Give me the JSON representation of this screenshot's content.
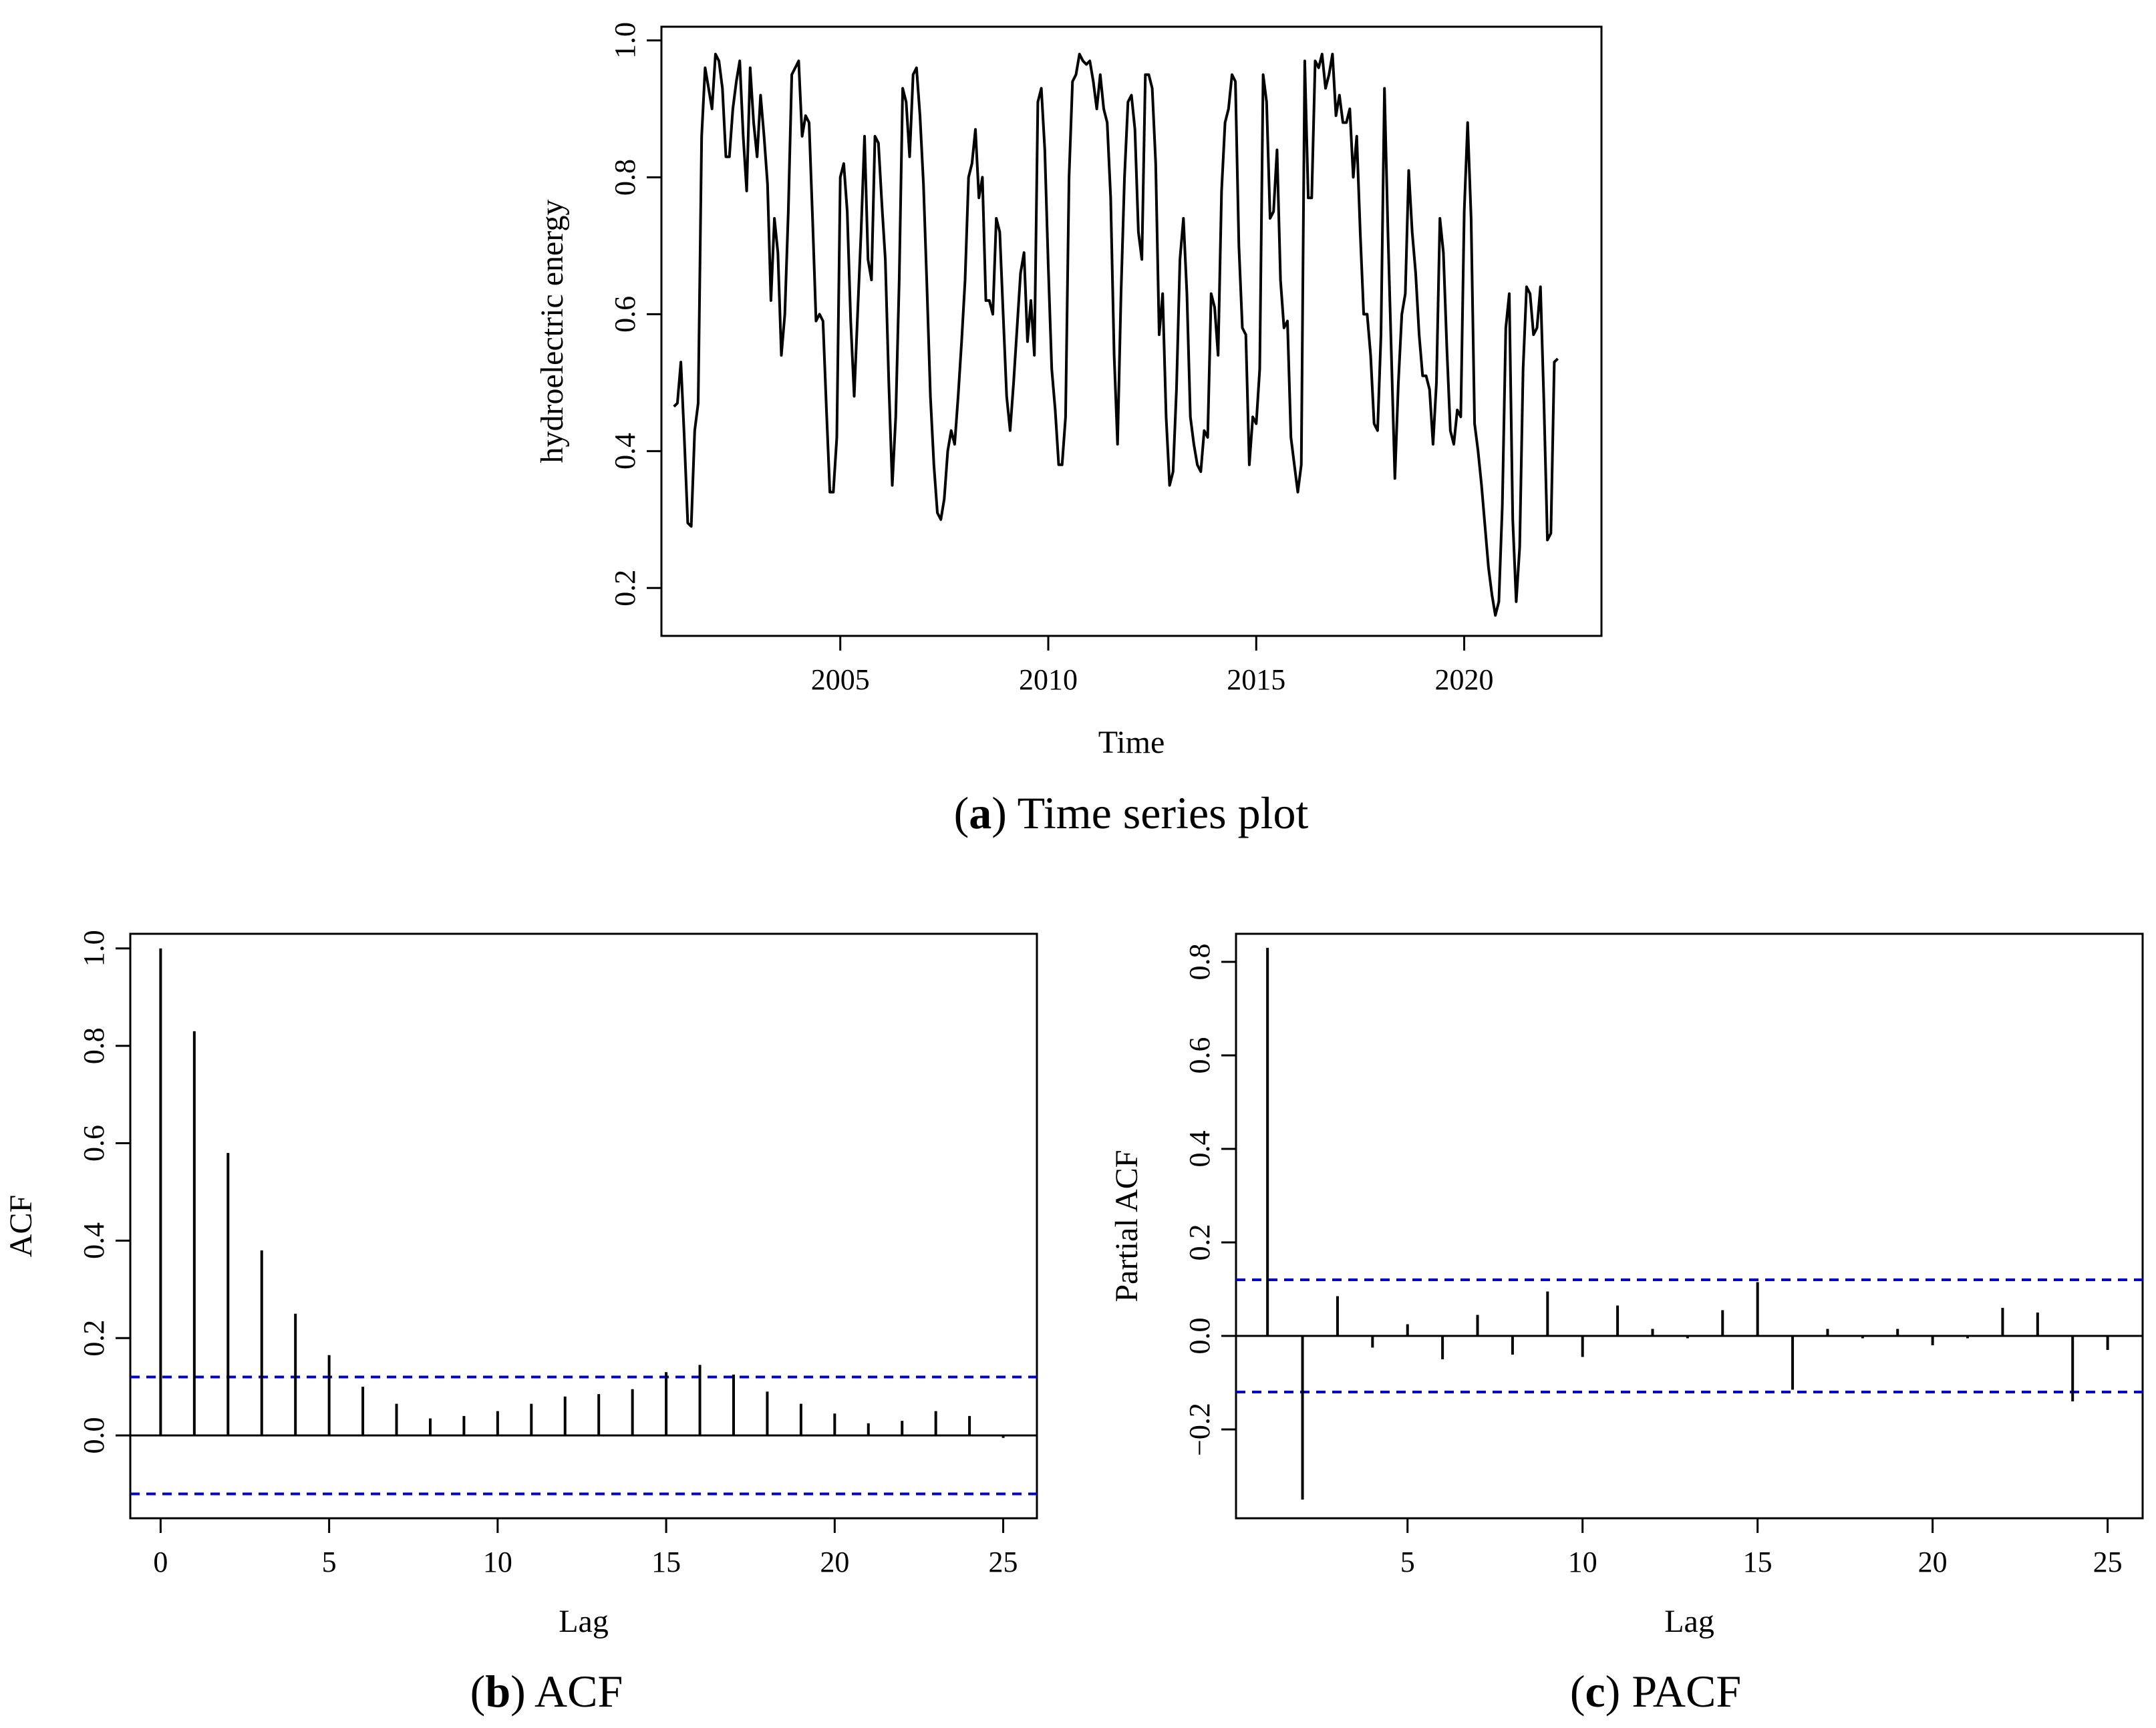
{
  "captions": {
    "a": {
      "letter": "a",
      "text": " Time series plot"
    },
    "b": {
      "letter": "b",
      "text": " ACF"
    },
    "c": {
      "letter": "c",
      "text": " PACF"
    }
  },
  "colors": {
    "series": "#000000",
    "confidence": "#0000dd",
    "axis": "#000000"
  },
  "chart_data": [
    {
      "id": "a",
      "type": "line",
      "title": "",
      "xlabel": "Time",
      "ylabel": "hydroelectric energy",
      "xlim": [
        2000.7,
        2023.3
      ],
      "ylim": [
        0.13,
        1.02
      ],
      "xticks": [
        2005,
        2010,
        2015,
        2020
      ],
      "xtick_labels": [
        "2005",
        "2010",
        "2015",
        "2020"
      ],
      "yticks": [
        0.2,
        0.4,
        0.6,
        0.8,
        1.0
      ],
      "ytick_labels": [
        "0.2",
        "0.4",
        "0.6",
        "0.8",
        "1.0"
      ],
      "x_start": 2001.0,
      "x_step": 0.0833333,
      "values": [
        0.465,
        0.47,
        0.53,
        0.42,
        0.295,
        0.29,
        0.43,
        0.47,
        0.86,
        0.96,
        0.93,
        0.9,
        0.98,
        0.97,
        0.93,
        0.83,
        0.83,
        0.9,
        0.94,
        0.97,
        0.86,
        0.78,
        0.96,
        0.88,
        0.83,
        0.92,
        0.86,
        0.79,
        0.62,
        0.74,
        0.69,
        0.54,
        0.6,
        0.75,
        0.95,
        0.96,
        0.97,
        0.86,
        0.89,
        0.88,
        0.74,
        0.59,
        0.6,
        0.59,
        0.46,
        0.34,
        0.34,
        0.42,
        0.8,
        0.82,
        0.75,
        0.59,
        0.48,
        0.6,
        0.72,
        0.86,
        0.68,
        0.65,
        0.86,
        0.85,
        0.76,
        0.68,
        0.5,
        0.35,
        0.45,
        0.65,
        0.93,
        0.91,
        0.83,
        0.95,
        0.96,
        0.89,
        0.79,
        0.64,
        0.48,
        0.38,
        0.31,
        0.3,
        0.33,
        0.4,
        0.43,
        0.41,
        0.48,
        0.56,
        0.65,
        0.8,
        0.82,
        0.87,
        0.77,
        0.8,
        0.62,
        0.62,
        0.6,
        0.74,
        0.72,
        0.6,
        0.48,
        0.43,
        0.5,
        0.58,
        0.66,
        0.69,
        0.56,
        0.62,
        0.54,
        0.91,
        0.93,
        0.84,
        0.67,
        0.52,
        0.46,
        0.38,
        0.38,
        0.45,
        0.8,
        0.94,
        0.95,
        0.98,
        0.97,
        0.965,
        0.97,
        0.94,
        0.9,
        0.95,
        0.9,
        0.88,
        0.77,
        0.54,
        0.41,
        0.63,
        0.8,
        0.91,
        0.92,
        0.87,
        0.72,
        0.68,
        0.95,
        0.95,
        0.93,
        0.82,
        0.57,
        0.63,
        0.45,
        0.35,
        0.37,
        0.49,
        0.68,
        0.74,
        0.63,
        0.45,
        0.41,
        0.38,
        0.37,
        0.43,
        0.42,
        0.63,
        0.61,
        0.54,
        0.78,
        0.88,
        0.9,
        0.95,
        0.94,
        0.7,
        0.58,
        0.57,
        0.38,
        0.45,
        0.44,
        0.52,
        0.95,
        0.91,
        0.74,
        0.75,
        0.84,
        0.65,
        0.58,
        0.59,
        0.42,
        0.38,
        0.34,
        0.38,
        0.97,
        0.77,
        0.77,
        0.97,
        0.96,
        0.98,
        0.93,
        0.95,
        0.98,
        0.89,
        0.92,
        0.88,
        0.88,
        0.9,
        0.8,
        0.86,
        0.72,
        0.6,
        0.6,
        0.54,
        0.44,
        0.43,
        0.57,
        0.93,
        0.72,
        0.54,
        0.36,
        0.5,
        0.6,
        0.63,
        0.81,
        0.72,
        0.66,
        0.57,
        0.51,
        0.51,
        0.49,
        0.41,
        0.5,
        0.74,
        0.69,
        0.55,
        0.43,
        0.41,
        0.46,
        0.45,
        0.75,
        0.88,
        0.74,
        0.44,
        0.4,
        0.35,
        0.29,
        0.23,
        0.19,
        0.16,
        0.18,
        0.32,
        0.58,
        0.63,
        0.3,
        0.18,
        0.26,
        0.52,
        0.64,
        0.63,
        0.57,
        0.58,
        0.64,
        0.47,
        0.27,
        0.28,
        0.53,
        0.535
      ]
    },
    {
      "id": "b",
      "type": "bar",
      "title": "",
      "xlabel": "Lag",
      "ylabel": "ACF",
      "xlim": [
        -0.9,
        26
      ],
      "ylim": [
        -0.17,
        1.03
      ],
      "xticks": [
        0,
        5,
        10,
        15,
        20,
        25
      ],
      "xtick_labels": [
        "0",
        "5",
        "10",
        "15",
        "20",
        "25"
      ],
      "yticks": [
        0.0,
        0.2,
        0.4,
        0.6,
        0.8,
        1.0
      ],
      "ytick_labels": [
        "0.0",
        "0.2",
        "0.4",
        "0.6",
        "0.8",
        "1.0"
      ],
      "confidence_bound": 0.12,
      "lags": [
        0,
        1,
        2,
        3,
        4,
        5,
        6,
        7,
        8,
        9,
        10,
        11,
        12,
        13,
        14,
        15,
        16,
        17,
        18,
        19,
        20,
        21,
        22,
        23,
        24,
        25
      ],
      "values": [
        1.0,
        0.83,
        0.58,
        0.38,
        0.25,
        0.165,
        0.1,
        0.065,
        0.035,
        0.04,
        0.05,
        0.065,
        0.08,
        0.085,
        0.095,
        0.13,
        0.145,
        0.125,
        0.09,
        0.065,
        0.045,
        0.025,
        0.03,
        0.05,
        0.04,
        -0.005
      ]
    },
    {
      "id": "c",
      "type": "bar",
      "title": "",
      "xlabel": "Lag",
      "ylabel": "Partial ACF",
      "xlim": [
        0.1,
        26
      ],
      "ylim": [
        -0.39,
        0.86
      ],
      "xticks": [
        5,
        10,
        15,
        20,
        25
      ],
      "xtick_labels": [
        "5",
        "10",
        "15",
        "20",
        "25"
      ],
      "yticks": [
        -0.2,
        0.0,
        0.2,
        0.4,
        0.6,
        0.8
      ],
      "ytick_labels": [
        "−0.2",
        "0.0",
        "0.2",
        "0.4",
        "0.6",
        "0.8"
      ],
      "confidence_bound": 0.12,
      "lags": [
        1,
        2,
        3,
        4,
        5,
        6,
        7,
        8,
        9,
        10,
        11,
        12,
        13,
        14,
        15,
        16,
        17,
        18,
        19,
        20,
        21,
        22,
        23,
        24,
        25
      ],
      "values": [
        0.83,
        -0.35,
        0.085,
        -0.025,
        0.025,
        -0.05,
        0.045,
        -0.04,
        0.095,
        -0.045,
        0.065,
        0.015,
        -0.005,
        0.055,
        0.115,
        -0.115,
        0.015,
        -0.005,
        0.015,
        -0.02,
        -0.005,
        0.06,
        0.05,
        -0.14,
        -0.03
      ]
    }
  ]
}
